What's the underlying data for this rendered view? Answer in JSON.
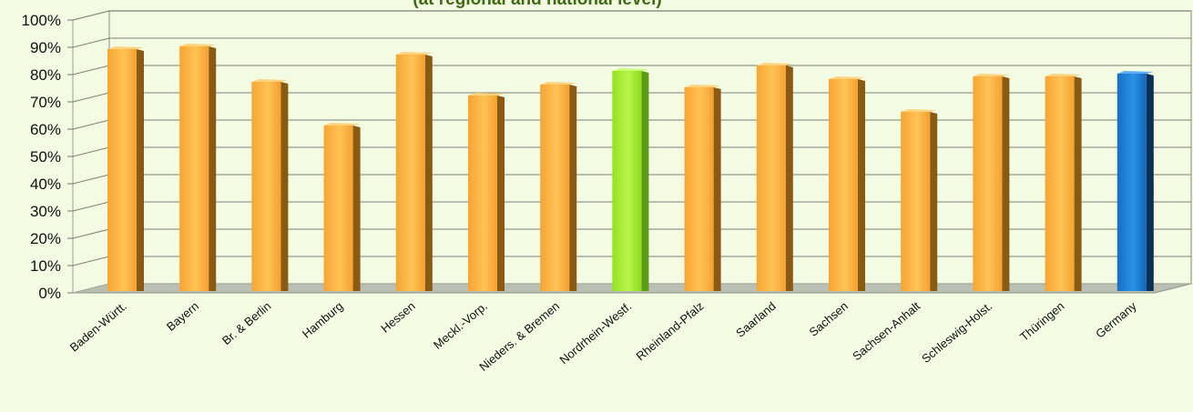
{
  "chart_data": {
    "type": "bar",
    "title": "(at regional and national level)",
    "categories": [
      "Baden-Württ.",
      "Bayern",
      "Br. & Berlin",
      "Hamburg",
      "Hessen",
      "Meckl.-Vorp.",
      "Nieders. & Bremen",
      "Nordrhein-Westf.",
      "Rheinland-Pfalz",
      "Saarland",
      "Sachsen",
      "Sachsen-Anhalt",
      "Schleswig-Holst.",
      "Thüringen",
      "Germany"
    ],
    "values": [
      90,
      91,
      78,
      62,
      88,
      73,
      77,
      82,
      76,
      84,
      79,
      67,
      80,
      80,
      81
    ],
    "y_ticks": [
      "0%",
      "10%",
      "20%",
      "30%",
      "40%",
      "50%",
      "60%",
      "70%",
      "80%",
      "90%",
      "100%"
    ],
    "ylim": [
      0,
      100
    ],
    "y_unit": "%",
    "grid": true,
    "legend": "none",
    "colors": {
      "default": "#ffb84a",
      "default_side": "#8a5a12",
      "highlight": "#a8f03a",
      "highlight_category": "Nordrhein-Westf.",
      "national": "#1a7fd6",
      "national_side": "#0c2f56",
      "national_category": "Germany"
    }
  }
}
